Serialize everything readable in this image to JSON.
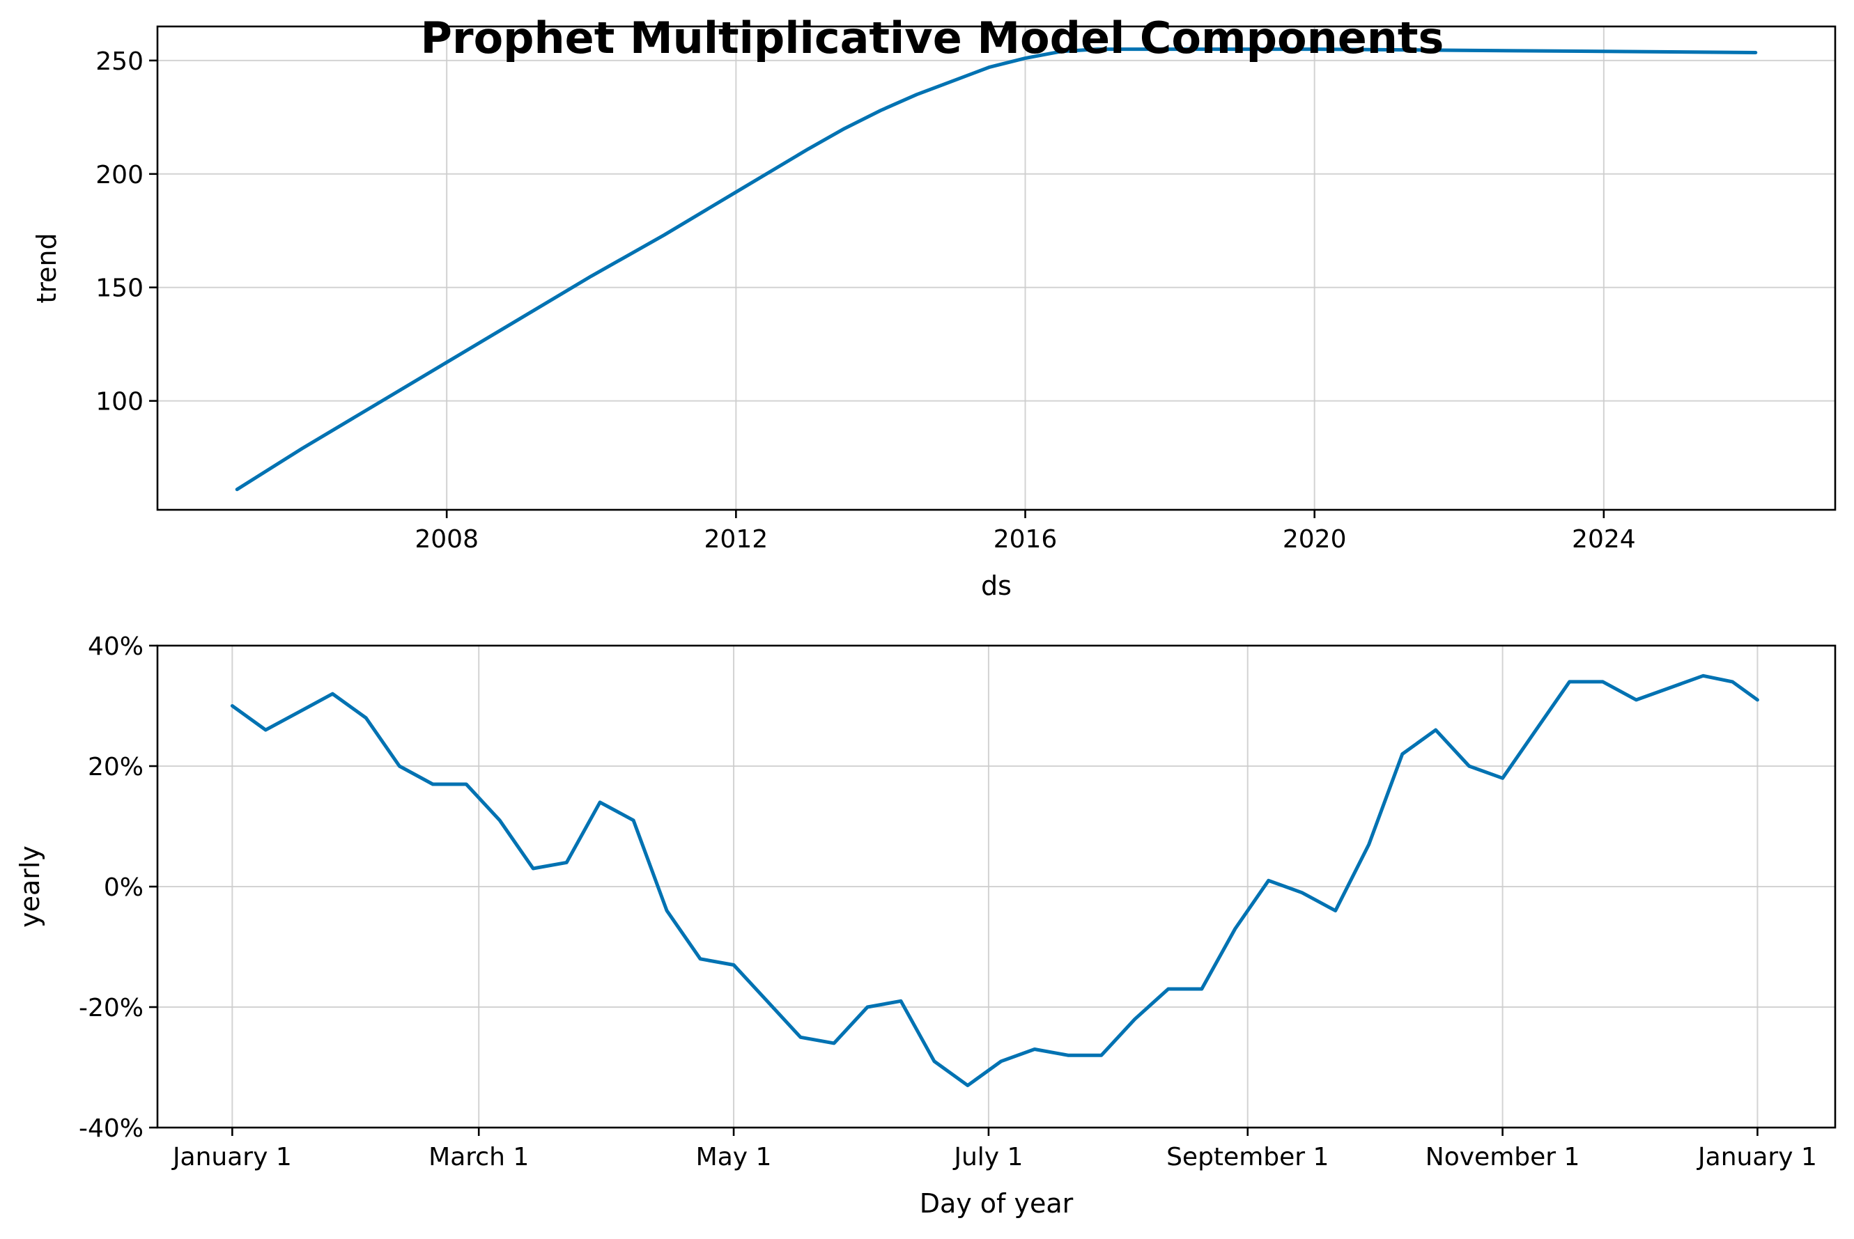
{
  "title": "Prophet Multiplicative Model Components",
  "colors": {
    "line": "#0072B2",
    "grid": "#cccccc",
    "axis": "#000000"
  },
  "chart_data": [
    {
      "type": "line",
      "name": "trend",
      "xlabel": "ds",
      "ylabel": "trend",
      "x_scale": "time",
      "xlim": [
        2004.0,
        2027.2
      ],
      "ylim": [
        52,
        265
      ],
      "xticks": [
        2008,
        2012,
        2016,
        2020,
        2024
      ],
      "xtick_labels": [
        "2008",
        "2012",
        "2016",
        "2020",
        "2024"
      ],
      "yticks": [
        100,
        150,
        200,
        250
      ],
      "ytick_labels": [
        "100",
        "150",
        "200",
        "250"
      ],
      "grid": true,
      "series": [
        {
          "x": [
            2005.1,
            2006.0,
            2007.0,
            2008.0,
            2009.0,
            2010.0,
            2011.0,
            2012.0,
            2013.0,
            2013.5,
            2014.0,
            2014.5,
            2015.0,
            2015.5,
            2016.0,
            2016.5,
            2017.0,
            2018.0,
            2019.0,
            2020.0,
            2022.0,
            2024.0,
            2026.1
          ],
          "y": [
            61,
            79,
            98,
            117,
            136,
            155,
            173,
            192,
            211,
            220,
            228,
            235,
            241,
            247,
            251,
            254,
            255,
            255,
            255,
            255,
            254.5,
            254,
            253.5
          ]
        }
      ]
    },
    {
      "type": "line",
      "name": "yearly",
      "xlabel": "Day of year",
      "ylabel": "yearly",
      "xlim": [
        -17.9,
        383.6
      ],
      "ylim": [
        -0.4,
        0.4
      ],
      "xticks": [
        0,
        59,
        120,
        181,
        243,
        304,
        365
      ],
      "xtick_labels": [
        "January 1",
        "March 1",
        "May 1",
        "July 1",
        "September 1",
        "November 1",
        "January 1"
      ],
      "yticks": [
        -0.4,
        -0.2,
        0.0,
        0.2,
        0.4
      ],
      "ytick_labels": [
        "-40%",
        "-20%",
        "0%",
        "20%",
        "40%"
      ],
      "grid": true,
      "series": [
        {
          "x": [
            0,
            8,
            16,
            24,
            32,
            40,
            48,
            56,
            64,
            72,
            80,
            88,
            96,
            104,
            112,
            120,
            128,
            136,
            144,
            152,
            160,
            168,
            176,
            184,
            192,
            200,
            208,
            216,
            224,
            232,
            240,
            248,
            256,
            264,
            272,
            280,
            288,
            296,
            304,
            312,
            320,
            328,
            336,
            344,
            352,
            359,
            365
          ],
          "y": [
            0.3,
            0.26,
            0.29,
            0.32,
            0.28,
            0.2,
            0.17,
            0.17,
            0.11,
            0.03,
            0.04,
            0.14,
            0.11,
            -0.04,
            -0.12,
            -0.13,
            -0.19,
            -0.25,
            -0.26,
            -0.2,
            -0.19,
            -0.29,
            -0.33,
            -0.29,
            -0.27,
            -0.28,
            -0.28,
            -0.22,
            -0.17,
            -0.17,
            -0.07,
            0.01,
            -0.01,
            -0.04,
            0.07,
            0.22,
            0.26,
            0.2,
            0.18,
            0.26,
            0.34,
            0.34,
            0.31,
            0.33,
            0.35,
            0.34,
            0.31
          ]
        }
      ]
    }
  ]
}
